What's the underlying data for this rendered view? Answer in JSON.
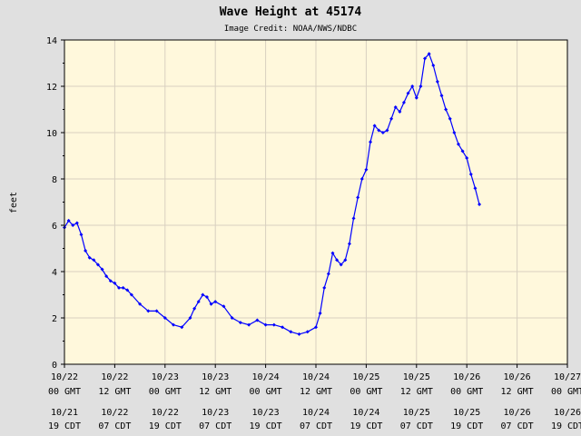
{
  "chart_data": {
    "type": "line",
    "title": "Wave Height at 45174",
    "subtitle": "Image Credit: NOAA/NWS/NDBC",
    "ylabel": "feet",
    "ylim": [
      0,
      14
    ],
    "yticks": [
      "0",
      "2",
      "4",
      "6",
      "8",
      "10",
      "12",
      "14"
    ],
    "x_tick_labels_gmt": [
      [
        "10/22",
        "00 GMT"
      ],
      [
        "10/22",
        "12 GMT"
      ],
      [
        "10/23",
        "00 GMT"
      ],
      [
        "10/23",
        "12 GMT"
      ],
      [
        "10/24",
        "00 GMT"
      ],
      [
        "10/24",
        "12 GMT"
      ],
      [
        "10/25",
        "00 GMT"
      ],
      [
        "10/25",
        "12 GMT"
      ],
      [
        "10/26",
        "00 GMT"
      ],
      [
        "10/26",
        "12 GMT"
      ],
      [
        "10/27",
        "00 GMT"
      ]
    ],
    "x_tick_labels_cdt": [
      [
        "10/21",
        "19 CDT"
      ],
      [
        "10/22",
        "07 CDT"
      ],
      [
        "10/22",
        "19 CDT"
      ],
      [
        "10/23",
        "07 CDT"
      ],
      [
        "10/23",
        "19 CDT"
      ],
      [
        "10/24",
        "07 CDT"
      ],
      [
        "10/24",
        "19 CDT"
      ],
      [
        "10/25",
        "07 CDT"
      ],
      [
        "10/25",
        "19 CDT"
      ],
      [
        "10/26",
        "07 CDT"
      ],
      [
        "10/26",
        "19 CDT"
      ]
    ],
    "grid": true,
    "colors": {
      "background": "#fff8dc",
      "frame": "#e0e0e0",
      "series": "#0000ff",
      "grid": "#d8d0c0"
    },
    "series": [
      {
        "x": [
          "10/22 00 GMT",
          "10/22 01 GMT",
          "10/22 02 GMT",
          "10/22 03 GMT",
          "10/22 04 GMT",
          "10/22 05 GMT",
          "10/22 06 GMT",
          "10/22 07 GMT",
          "10/22 08 GMT",
          "10/22 09 GMT",
          "10/22 10 GMT",
          "10/22 11 GMT",
          "10/22 12 GMT",
          "10/22 13 GMT",
          "10/22 14 GMT",
          "10/22 15 GMT",
          "10/22 16 GMT",
          "10/22 18 GMT",
          "10/22 20 GMT",
          "10/22 22 GMT",
          "10/23 00 GMT",
          "10/23 02 GMT",
          "10/23 04 GMT",
          "10/23 06 GMT",
          "10/23 07 GMT",
          "10/23 08 GMT",
          "10/23 09 GMT",
          "10/23 10 GMT",
          "10/23 11 GMT",
          "10/23 12 GMT",
          "10/23 14 GMT",
          "10/23 16 GMT",
          "10/23 18 GMT",
          "10/23 20 GMT",
          "10/23 22 GMT",
          "10/24 00 GMT",
          "10/24 02 GMT",
          "10/24 04 GMT",
          "10/24 06 GMT",
          "10/24 08 GMT",
          "10/24 10 GMT",
          "10/24 12 GMT",
          "10/24 13 GMT",
          "10/24 14 GMT",
          "10/24 15 GMT",
          "10/24 16 GMT",
          "10/24 17 GMT",
          "10/24 18 GMT",
          "10/24 19 GMT",
          "10/24 20 GMT",
          "10/24 21 GMT",
          "10/24 22 GMT",
          "10/24 23 GMT",
          "10/25 00 GMT",
          "10/25 01 GMT",
          "10/25 02 GMT",
          "10/25 03 GMT",
          "10/25 04 GMT",
          "10/25 05 GMT",
          "10/25 06 GMT",
          "10/25 07 GMT",
          "10/25 08 GMT",
          "10/25 09 GMT",
          "10/25 10 GMT",
          "10/25 11 GMT",
          "10/25 12 GMT",
          "10/25 13 GMT",
          "10/25 14 GMT",
          "10/25 15 GMT",
          "10/25 16 GMT",
          "10/25 17 GMT",
          "10/25 18 GMT",
          "10/25 19 GMT",
          "10/25 20 GMT",
          "10/25 21 GMT",
          "10/25 22 GMT",
          "10/25 23 GMT",
          "10/26 00 GMT",
          "10/26 01 GMT",
          "10/26 02 GMT",
          "10/26 03 GMT"
        ],
        "values": [
          5.9,
          6.2,
          6.0,
          6.1,
          5.6,
          4.9,
          4.6,
          4.5,
          4.3,
          4.1,
          3.8,
          3.6,
          3.5,
          3.3,
          3.3,
          3.2,
          3.0,
          2.6,
          2.3,
          2.3,
          2.0,
          1.7,
          1.6,
          2.0,
          2.4,
          2.7,
          3.0,
          2.9,
          2.6,
          2.7,
          2.5,
          2.0,
          1.8,
          1.7,
          1.9,
          1.7,
          1.7,
          1.6,
          1.4,
          1.3,
          1.4,
          1.6,
          2.2,
          3.3,
          3.9,
          4.8,
          4.5,
          4.3,
          4.5,
          5.2,
          6.3,
          7.2,
          8.0,
          8.4,
          9.6,
          10.3,
          10.1,
          10.0,
          10.1,
          10.6,
          11.1,
          10.9,
          11.3,
          11.7,
          12.0,
          11.5,
          12.0,
          13.2,
          13.4,
          12.9,
          12.2,
          11.6,
          11.0,
          10.6,
          10.0,
          9.5,
          9.2,
          8.9,
          8.2,
          7.6,
          6.9
        ]
      }
    ]
  }
}
